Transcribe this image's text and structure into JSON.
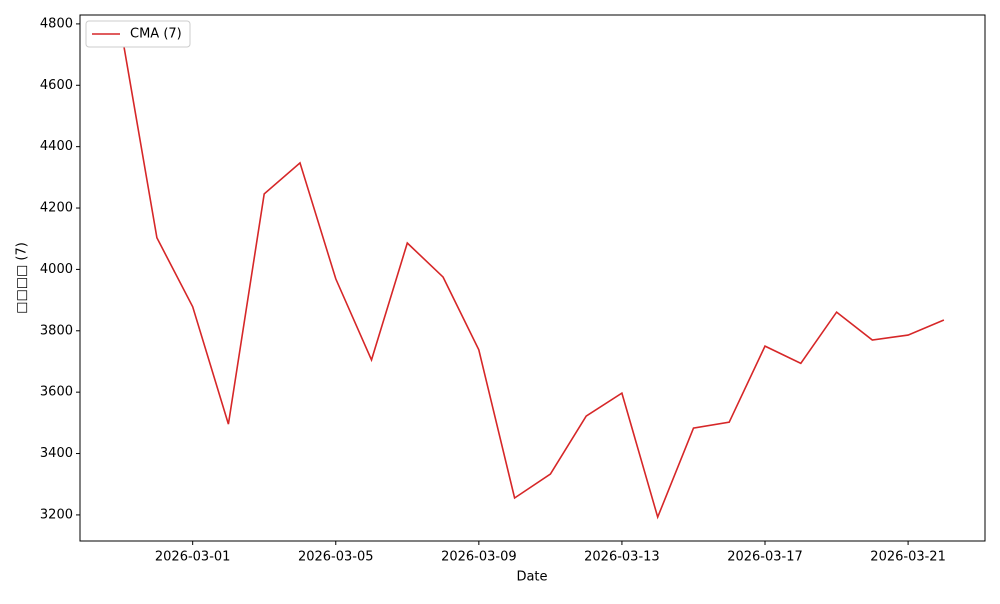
{
  "chart_data": {
    "type": "line",
    "x_label": "Date",
    "y_label": "□□□□ (7)",
    "x": [
      "2026-02-27",
      "2026-02-28",
      "2026-03-01",
      "2026-03-02",
      "2026-03-03",
      "2026-03-04",
      "2026-03-05",
      "2026-03-06",
      "2026-03-07",
      "2026-03-08",
      "2026-03-09",
      "2026-03-10",
      "2026-03-11",
      "2026-03-12",
      "2026-03-13",
      "2026-03-14",
      "2026-03-15",
      "2026-03-16",
      "2026-03-17",
      "2026-03-18",
      "2026-03-19",
      "2026-03-20",
      "2026-03-21",
      "2026-03-22"
    ],
    "series": [
      {
        "name": "CMA (7)",
        "color": "#d62728",
        "values": [
          4780,
          4103,
          3878,
          3496,
          4246,
          4347,
          3969,
          3705,
          4086,
          3975,
          3738,
          3255,
          3333,
          3522,
          3597,
          3193,
          3483,
          3502,
          3750,
          3694,
          3861,
          3770,
          3786,
          3835
        ]
      }
    ],
    "xlim": [
      "2026-02-25T20:24",
      "2026-03-23T03:36"
    ],
    "xticks": [
      "2026-03-01",
      "2026-03-05",
      "2026-03-09",
      "2026-03-13",
      "2026-03-17",
      "2026-03-21"
    ],
    "ylim": [
      3115,
      4829
    ],
    "yticks": [
      3200,
      3400,
      3600,
      3800,
      4000,
      4200,
      4400,
      4600,
      4800
    ],
    "legend": "upper left"
  }
}
